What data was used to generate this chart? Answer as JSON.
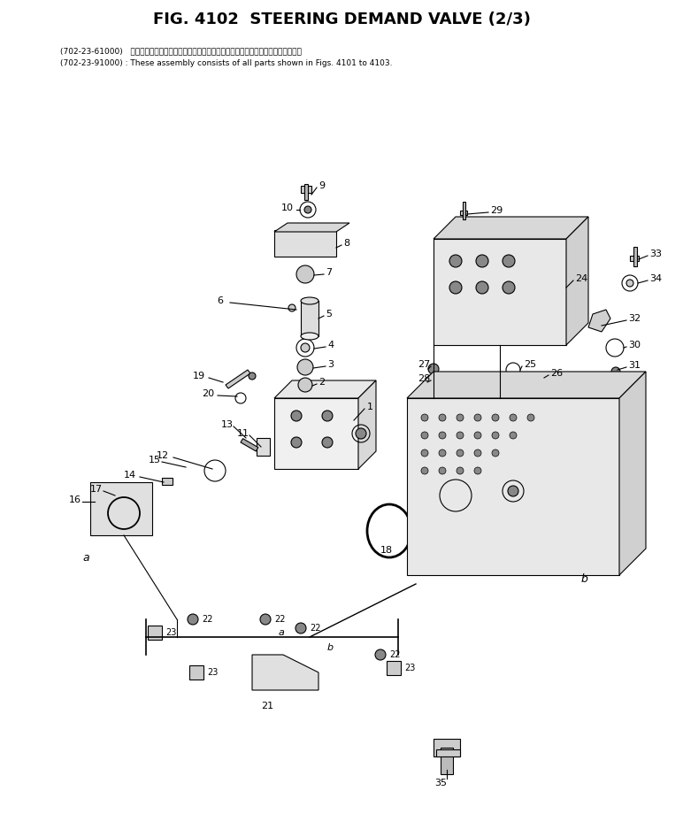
{
  "title": "FIG. 4102  STEERING DEMAND VALVE (2/3)",
  "subtitle_line1": "(702-23-61000)   これらのアセンブリの構成部品は第４１０１図から第４１０３図までご覧ます．",
  "subtitle_line2": "(702-23-91000) : These assembly consists of all parts shown in Figs. 4101 to 4103.",
  "bg_color": "#ffffff",
  "line_color": "#000000",
  "fig_width": 7.72,
  "fig_height": 9.46
}
